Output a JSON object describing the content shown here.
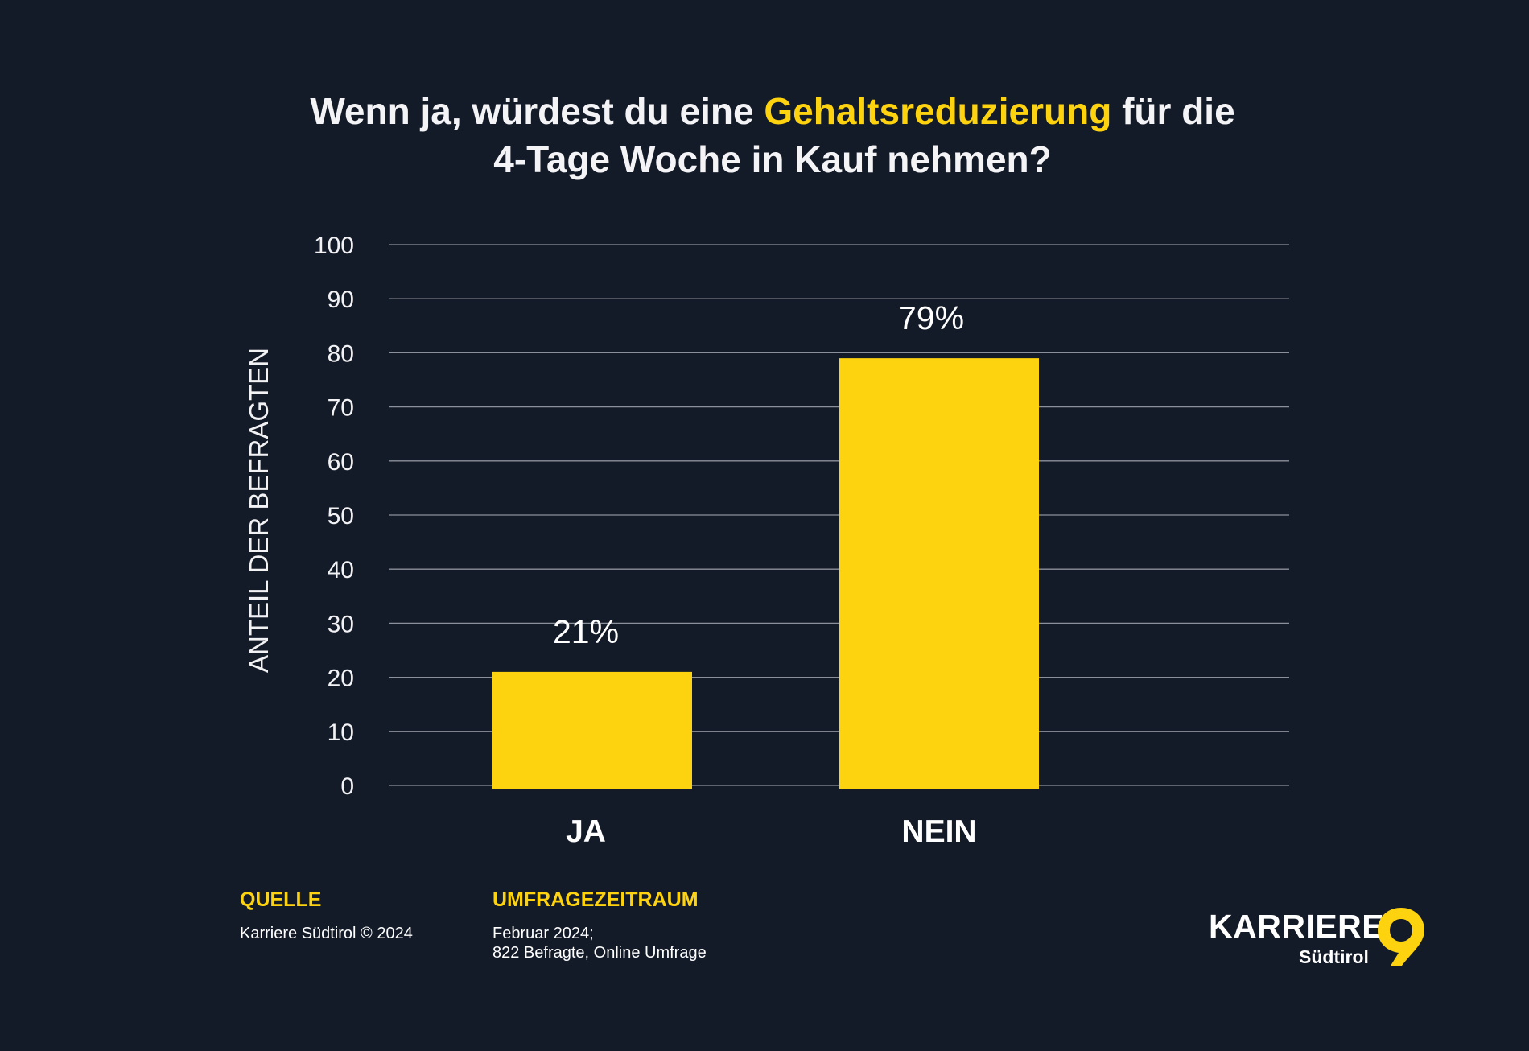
{
  "title": {
    "line1_pre": "Wenn ja, würdest du eine ",
    "line1_highlight": "Gehaltsreduzierung",
    "line1_post": " für die",
    "line2": "4-Tage Woche in Kauf nehmen?"
  },
  "colors": {
    "background": "#131a28",
    "accent": "#fdd20e",
    "bar": "#fdd20e",
    "grid": "#8c909a"
  },
  "chart_data": {
    "type": "bar",
    "categories": [
      "JA",
      "NEIN"
    ],
    "values": [
      21,
      79
    ],
    "value_labels": [
      "21%",
      "79%"
    ],
    "ylabel": "ANTEIL DER BEFRAGTEN",
    "ylim": [
      0,
      100
    ],
    "yticks": [
      0,
      10,
      20,
      30,
      40,
      50,
      60,
      70,
      80,
      90,
      100
    ],
    "grid": true
  },
  "footer": {
    "source_label": "QUELLE",
    "source_text": "Karriere Südtirol © 2024",
    "period_label": "UMFRAGEZEITRAUM",
    "period_line1": "Februar 2024;",
    "period_line2": "822 Befragte, Online Umfrage"
  },
  "logo": {
    "word": "KARRIERE",
    "sub": "Südtirol",
    "icon": "location-pin-icon"
  }
}
